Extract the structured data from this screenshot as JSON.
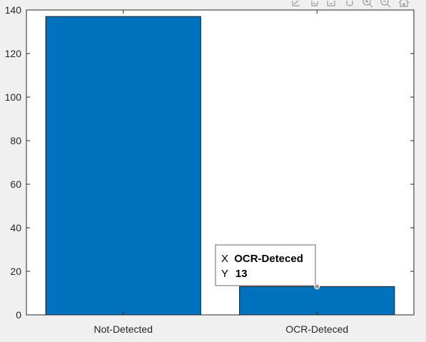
{
  "chart_data": {
    "type": "bar",
    "categories": [
      "Not-Detected",
      "OCR-Deteced"
    ],
    "values": [
      137,
      13
    ],
    "ylim": [
      0,
      140
    ],
    "yticks": [
      0,
      20,
      40,
      60,
      80,
      100,
      120,
      140
    ],
    "title": "",
    "xlabel": "",
    "ylabel": "",
    "bar_color": "#0072BD",
    "grid": false
  },
  "datatip": {
    "x_key": "X",
    "x_value": "OCR-Deteced",
    "y_key": "Y",
    "y_value": "13"
  },
  "toolbar": {
    "icons": [
      "export-icon",
      "brush-icon",
      "datatip-icon",
      "pan-icon",
      "zoom-in-icon",
      "zoom-out-icon",
      "home-icon"
    ]
  }
}
